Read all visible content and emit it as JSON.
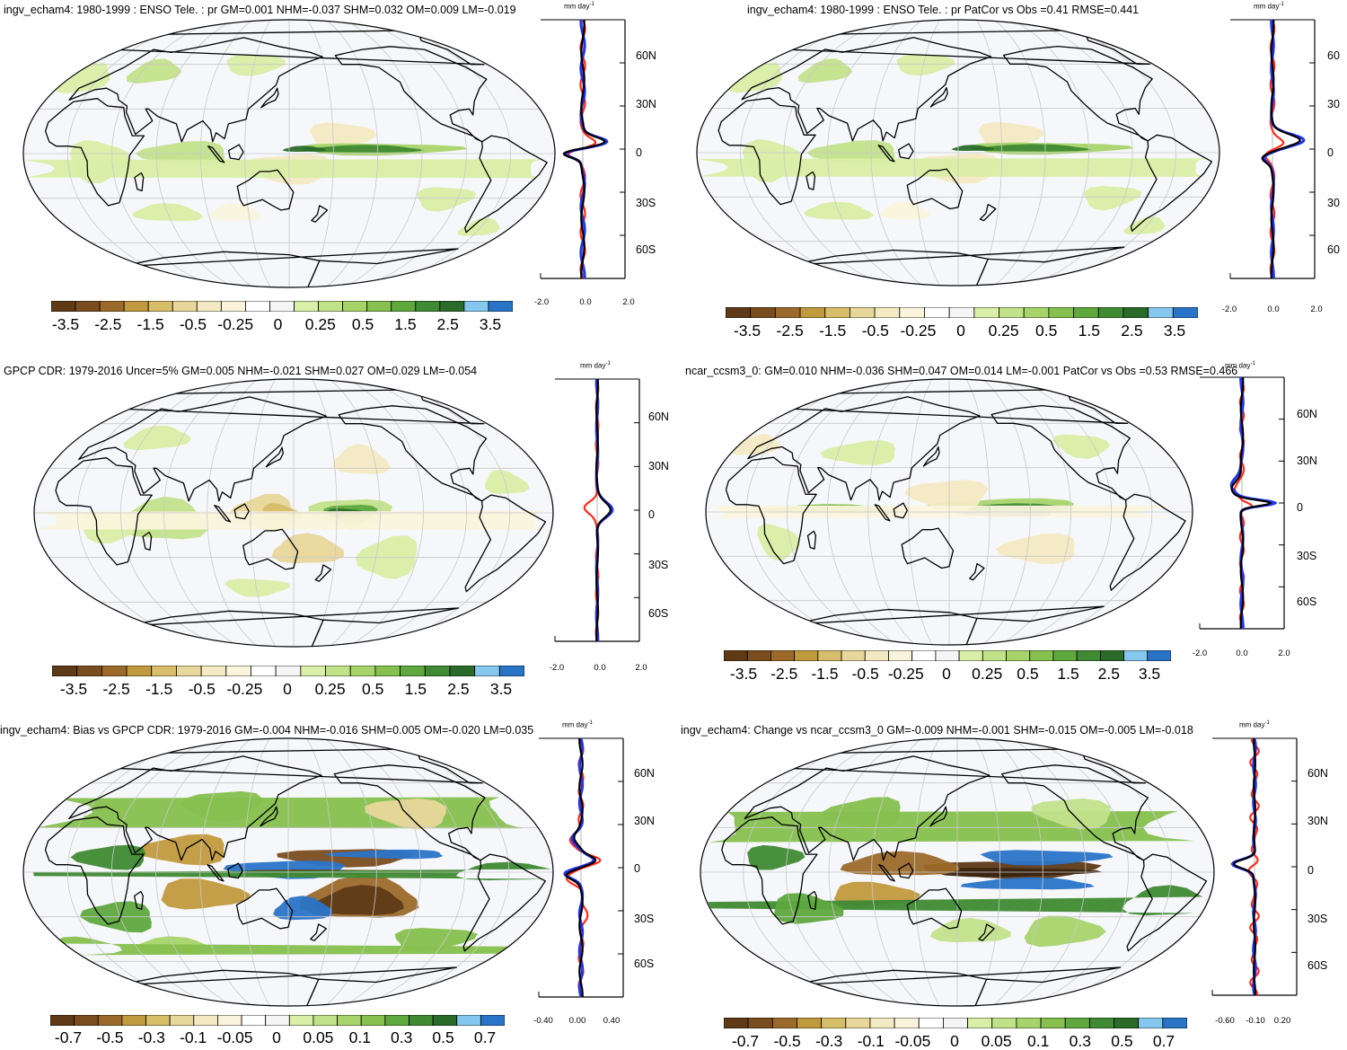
{
  "palette": {
    "ocean_bg": "#f6f7fb",
    "coast": "#000000",
    "grid": "#c8c8c8",
    "line_red": "#ff2a1a",
    "line_blue": "#2233ee",
    "line_black": "#000000",
    "colorbar": [
      "#5e3a17",
      "#7a4d1f",
      "#9b6a2a",
      "#c19a3e",
      "#d8bd6a",
      "#e8d79a",
      "#f3eac3",
      "#faf4dc",
      "#ffffff",
      "#f5f5f5",
      "#d9eea7",
      "#c2e28a",
      "#a7d46a",
      "#86c04e",
      "#5ea83e",
      "#3f8a33",
      "#2a6b2a",
      "#85c7ee",
      "#2a74c8"
    ]
  },
  "panels": [
    {
      "id": "p1",
      "title": "ingv_echam4: 1980-1999 : ENSO Tele. : pr GM=0.001 NHM=-0.037 SHM=0.032 OM=0.009 LM=-0.019",
      "unit": "mm day",
      "unit_sup": "-1",
      "lat_labels": [
        "60N",
        "30N",
        "0",
        "30S",
        "60S"
      ],
      "zonal_ticks": [
        "-2.0",
        "0.0",
        "2.0"
      ],
      "colorbar_labels": [
        "-3.5",
        "-2.5",
        "-1.5",
        "-0.5",
        "-0.25",
        "0",
        "0.25",
        "0.5",
        "1.5",
        "2.5",
        "3.5"
      ],
      "pattern": "enso"
    },
    {
      "id": "p2",
      "title": "ingv_echam4: 1980-1999 : ENSO Tele. : pr PatCor vs Obs =0.41 RMSE=0.441",
      "unit": "mm day",
      "unit_sup": "-1",
      "lat_labels": [
        "60",
        "30",
        "0",
        "30",
        "60"
      ],
      "zonal_ticks": [
        "-2.0",
        "0.0",
        "2.0"
      ],
      "colorbar_labels": [
        "-3.5",
        "-2.5",
        "-1.5",
        "-0.5",
        "-0.25",
        "0",
        "0.25",
        "0.5",
        "1.5",
        "2.5",
        "3.5"
      ],
      "pattern": "enso"
    },
    {
      "id": "p3",
      "title": "GPCP CDR: 1979-2016 Uncer=5% GM=0.005 NHM=-0.021 SHM=0.027 OM=0.029 LM=-0.054",
      "unit": "mm day",
      "unit_sup": "-1",
      "lat_labels": [
        "60N",
        "30N",
        "0",
        "30S",
        "60S"
      ],
      "zonal_ticks": [
        "-2.0",
        "0.0",
        "2.0"
      ],
      "colorbar_labels": [
        "-3.5",
        "-2.5",
        "-1.5",
        "-0.5",
        "-0.25",
        "0",
        "0.25",
        "0.5",
        "1.5",
        "2.5",
        "3.5"
      ],
      "pattern": "gpcp"
    },
    {
      "id": "p4",
      "title": "ncar_ccsm3_0: GM=0.010 NHM=-0.036 SHM=0.047 OM=0.014 LM=-0.001 PatCor vs Obs =0.53 RMSE=0.466",
      "unit": "mm day",
      "unit_sup": "-1",
      "lat_labels": [
        "60N",
        "30N",
        "0",
        "30S",
        "60S"
      ],
      "zonal_ticks": [
        "-2.0",
        "0.0",
        "2.0"
      ],
      "colorbar_labels": [
        "-3.5",
        "-2.5",
        "-1.5",
        "-0.5",
        "-0.25",
        "0",
        "0.25",
        "0.5",
        "1.5",
        "2.5",
        "3.5"
      ],
      "pattern": "ccsm"
    },
    {
      "id": "p5",
      "title": "ingv_echam4: Bias vs GPCP CDR: 1979-2016 GM=-0.004 NHM=-0.016 SHM=0.005 OM=-0.020 LM=0.035",
      "unit": "mm day",
      "unit_sup": "-1",
      "lat_labels": [
        "60N",
        "30N",
        "0",
        "30S",
        "60S"
      ],
      "zonal_ticks": [
        "-0.40",
        "0.00",
        "0.40"
      ],
      "colorbar_labels": [
        "-0.7",
        "-0.5",
        "-0.3",
        "-0.1",
        "-0.05",
        "0",
        "0.05",
        "0.1",
        "0.3",
        "0.5",
        "0.7"
      ],
      "pattern": "bias"
    },
    {
      "id": "p6",
      "title": "ingv_echam4: Change vs ncar_ccsm3_0 GM=-0.009 NHM=-0.001 SHM=-0.015 OM=-0.005 LM=-0.018",
      "unit": "mm day",
      "unit_sup": "-1",
      "lat_labels": [
        "60N",
        "30N",
        "0",
        "30S",
        "60S"
      ],
      "zonal_ticks": [
        "-0.60",
        "-0.10",
        "0.20"
      ],
      "colorbar_labels": [
        "-0.7",
        "-0.5",
        "-0.3",
        "-0.1",
        "-0.05",
        "0",
        "0.05",
        "0.1",
        "0.3",
        "0.5",
        "0.7"
      ],
      "pattern": "change"
    }
  ]
}
